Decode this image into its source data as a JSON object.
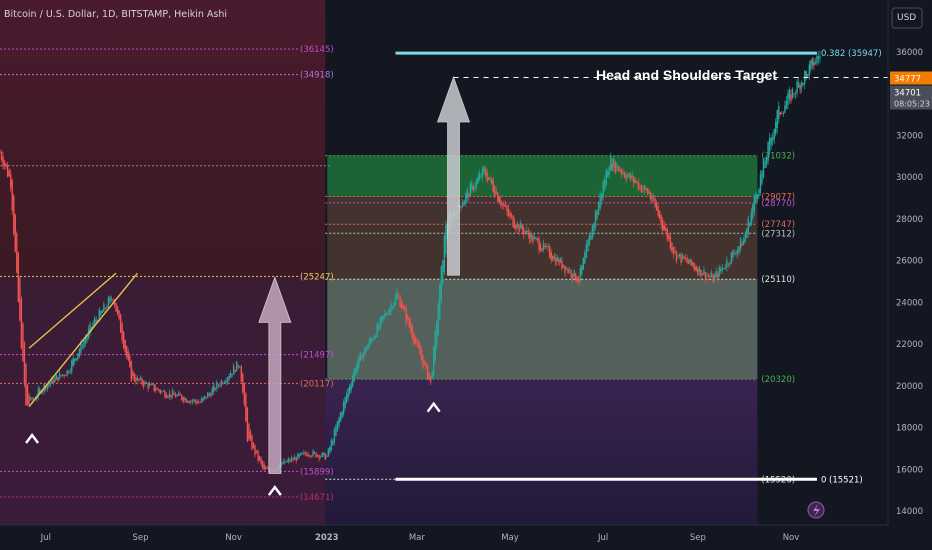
{
  "header": {
    "symbol_title": "Bitcoin / U.S. Dollar, 1D, BITSTAMP, Heikin Ashi",
    "currency_label": "USD"
  },
  "chart_data": {
    "type": "candlestick",
    "chart_style": "Heikin Ashi",
    "title": "Bitcoin / U.S. Dollar, 1D, BITSTAMP, Heikin Ashi",
    "x_tick_labels": [
      "Jul",
      "Sep",
      "Nov",
      "2023",
      "Mar",
      "May",
      "Jul",
      "Sep",
      "Nov"
    ],
    "x_range": [
      "2022-06-01",
      "2023-11-20"
    ],
    "y_range": [
      14000,
      37000
    ],
    "y_tick_values": [
      14000,
      16000,
      18000,
      20000,
      22000,
      24000,
      26000,
      28000,
      30000,
      32000,
      34000,
      36000
    ],
    "last_price": 34777,
    "last_close": 34701,
    "countdown": "08:05:23",
    "price_series_approx": [
      {
        "date": "2022-06-01",
        "price": 31200
      },
      {
        "date": "2022-06-08",
        "price": 29800
      },
      {
        "date": "2022-06-13",
        "price": 24000
      },
      {
        "date": "2022-06-18",
        "price": 19000
      },
      {
        "date": "2022-06-30",
        "price": 20000
      },
      {
        "date": "2022-07-15",
        "price": 20700
      },
      {
        "date": "2022-08-01",
        "price": 23000
      },
      {
        "date": "2022-08-14",
        "price": 24300
      },
      {
        "date": "2022-08-26",
        "price": 20400
      },
      {
        "date": "2022-09-15",
        "price": 19700
      },
      {
        "date": "2022-10-10",
        "price": 19200
      },
      {
        "date": "2022-11-05",
        "price": 21100
      },
      {
        "date": "2022-11-10",
        "price": 17500
      },
      {
        "date": "2022-11-21",
        "price": 15900
      },
      {
        "date": "2022-12-20",
        "price": 16800
      },
      {
        "date": "2023-01-01",
        "price": 16600
      },
      {
        "date": "2023-01-20",
        "price": 21000
      },
      {
        "date": "2023-02-16",
        "price": 24400
      },
      {
        "date": "2023-03-10",
        "price": 20100
      },
      {
        "date": "2023-03-20",
        "price": 27800
      },
      {
        "date": "2023-04-14",
        "price": 30300
      },
      {
        "date": "2023-05-01",
        "price": 28000
      },
      {
        "date": "2023-06-15",
        "price": 25100
      },
      {
        "date": "2023-07-05",
        "price": 30800
      },
      {
        "date": "2023-07-31",
        "price": 29200
      },
      {
        "date": "2023-08-17",
        "price": 26300
      },
      {
        "date": "2023-09-11",
        "price": 25100
      },
      {
        "date": "2023-10-01",
        "price": 27000
      },
      {
        "date": "2023-10-23",
        "price": 33000
      },
      {
        "date": "2023-11-20",
        "price": 35900
      }
    ],
    "horizontal_levels": [
      {
        "label": "(36145)",
        "value": 36145,
        "color": "#c04fcf"
      },
      {
        "label": "(34918)",
        "value": 34918,
        "color": "#a87bd0"
      },
      {
        "label": "(25247)",
        "value": 25247,
        "color": "#e6d35a"
      },
      {
        "label": "(21497)",
        "value": 21497,
        "color": "#c04fcf"
      },
      {
        "label": "(20117)",
        "value": 20117,
        "color": "#e06a5a"
      },
      {
        "label": "(15899)",
        "value": 15899,
        "color": "#c04fcf"
      },
      {
        "label": "(14671)",
        "value": 14671,
        "color": "#c03060"
      },
      {
        "label": "(31032)",
        "value": 31032,
        "color": "#4caf50"
      },
      {
        "label": "(29077)",
        "value": 29077,
        "color": "#e06a5a"
      },
      {
        "label": "(28770)",
        "value": 28770,
        "color": "#c04fcf"
      },
      {
        "label": "(27747)",
        "value": 27747,
        "color": "#e06a5a"
      },
      {
        "label": "(27312)",
        "value": 27312,
        "color": "#c0c0c0"
      },
      {
        "label": "(25110)",
        "value": 25110,
        "color": "#e0e0e0"
      },
      {
        "label": "(20320)",
        "value": 20320,
        "color": "#4caf50"
      },
      {
        "label": "(15520)",
        "value": 15520,
        "color": "#e0e0e0"
      }
    ],
    "fib_levels": [
      {
        "label": "0.382 (35947)",
        "value": 35947,
        "color": "#7fd8e8"
      },
      {
        "label": "0 (15521)",
        "value": 15521,
        "color": "#ffffff"
      }
    ],
    "annotations": {
      "target_label": "Head and Shoulders Target",
      "target_value": 34777,
      "wedge_lines": [
        {
          "from": {
            "date": "2022-06-20",
            "price": 21800
          },
          "to": {
            "date": "2022-08-16",
            "price": 25400
          }
        },
        {
          "from": {
            "date": "2022-06-20",
            "price": 19000
          },
          "to": {
            "date": "2022-08-30",
            "price": 25400
          }
        }
      ],
      "arrows_up": [
        {
          "from": {
            "date": "2022-11-28",
            "price": 15800
          },
          "to": {
            "date": "2022-11-28",
            "price": 25200
          }
        },
        {
          "from": {
            "date": "2023-03-25",
            "price": 25300
          },
          "to": {
            "date": "2023-03-25",
            "price": 34800
          }
        }
      ],
      "chevrons": [
        {
          "date": "2022-06-22",
          "price": 17500
        },
        {
          "date": "2022-11-28",
          "price": 15000
        },
        {
          "date": "2023-03-12",
          "price": 19000
        }
      ],
      "zones": [
        {
          "name": "green",
          "from": 29077,
          "to": 31032,
          "color": "#1e6b37"
        },
        {
          "name": "grey",
          "from": 20320,
          "to": 25110,
          "color": "#6b7a6e"
        },
        {
          "name": "purple-low",
          "from": 14671,
          "to": 20320,
          "color": "#4a2a5e"
        }
      ]
    },
    "colors": {
      "background": "#131722",
      "up": "#26a69a",
      "down": "#ef5350",
      "last_price_bg": "#f57c00"
    }
  }
}
